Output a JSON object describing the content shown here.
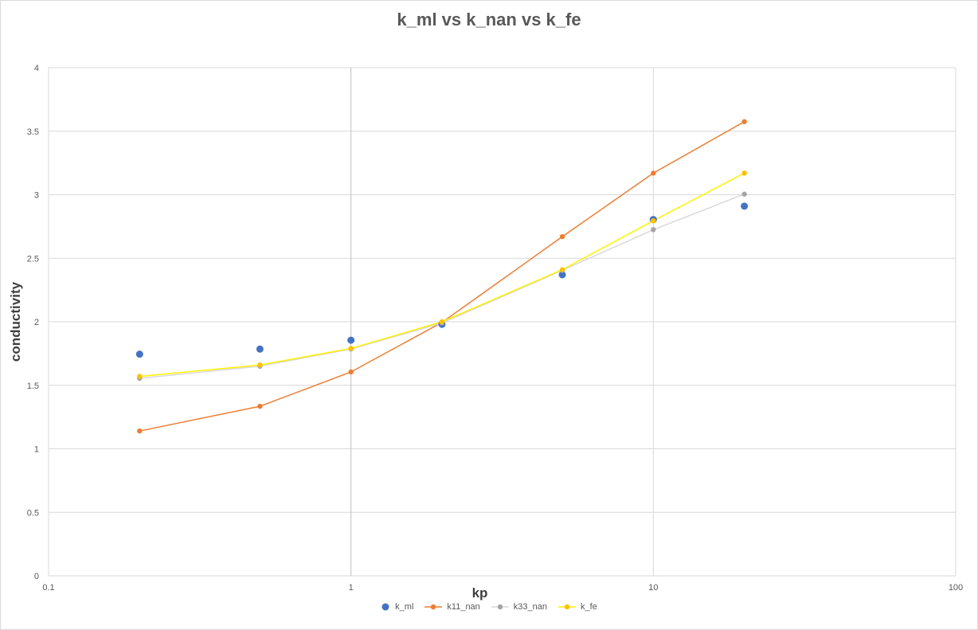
{
  "chart_data": {
    "type": "scatter",
    "title": "k_ml vs k_nan vs k_fe",
    "xlabel": "kp",
    "ylabel": "conductivity",
    "xscale": "log",
    "xlim": [
      0.1,
      100
    ],
    "ylim": [
      0,
      4
    ],
    "xticks": [
      "0.1",
      "1",
      "10",
      "100"
    ],
    "yticks": [
      "0",
      "0.5",
      "1",
      "1.5",
      "2",
      "2.5",
      "3",
      "3.5",
      "4"
    ],
    "grid": true,
    "legend_position": "bottom",
    "series": [
      {
        "name": "k_ml",
        "style": "markers",
        "color": "#4472C4",
        "marker_size": "large",
        "x": [
          0.2,
          0.5,
          1,
          2,
          5,
          10,
          20
        ],
        "y": [
          1.745,
          1.785,
          1.855,
          1.98,
          2.37,
          2.805,
          2.91
        ]
      },
      {
        "name": "k11_nan",
        "style": "line-markers",
        "color": "#ED7D31",
        "x": [
          0.2,
          0.5,
          1,
          2,
          5,
          10,
          20
        ],
        "y": [
          1.14,
          1.335,
          1.605,
          1.995,
          2.67,
          3.17,
          3.575
        ]
      },
      {
        "name": "k33_nan",
        "style": "line-markers",
        "color": "#A5A5A5",
        "line_color": "#D9D9D9",
        "x": [
          0.2,
          0.5,
          1,
          2,
          5,
          10,
          20
        ],
        "y": [
          1.555,
          1.65,
          1.785,
          1.99,
          2.405,
          2.725,
          3.005
        ]
      },
      {
        "name": "k_fe",
        "style": "line-markers",
        "color": "#FFC000",
        "line_color": "#FFF200",
        "x": [
          0.2,
          0.5,
          1,
          2,
          5,
          10,
          20
        ],
        "y": [
          1.57,
          1.66,
          1.79,
          2.0,
          2.41,
          2.795,
          3.17
        ]
      }
    ]
  }
}
